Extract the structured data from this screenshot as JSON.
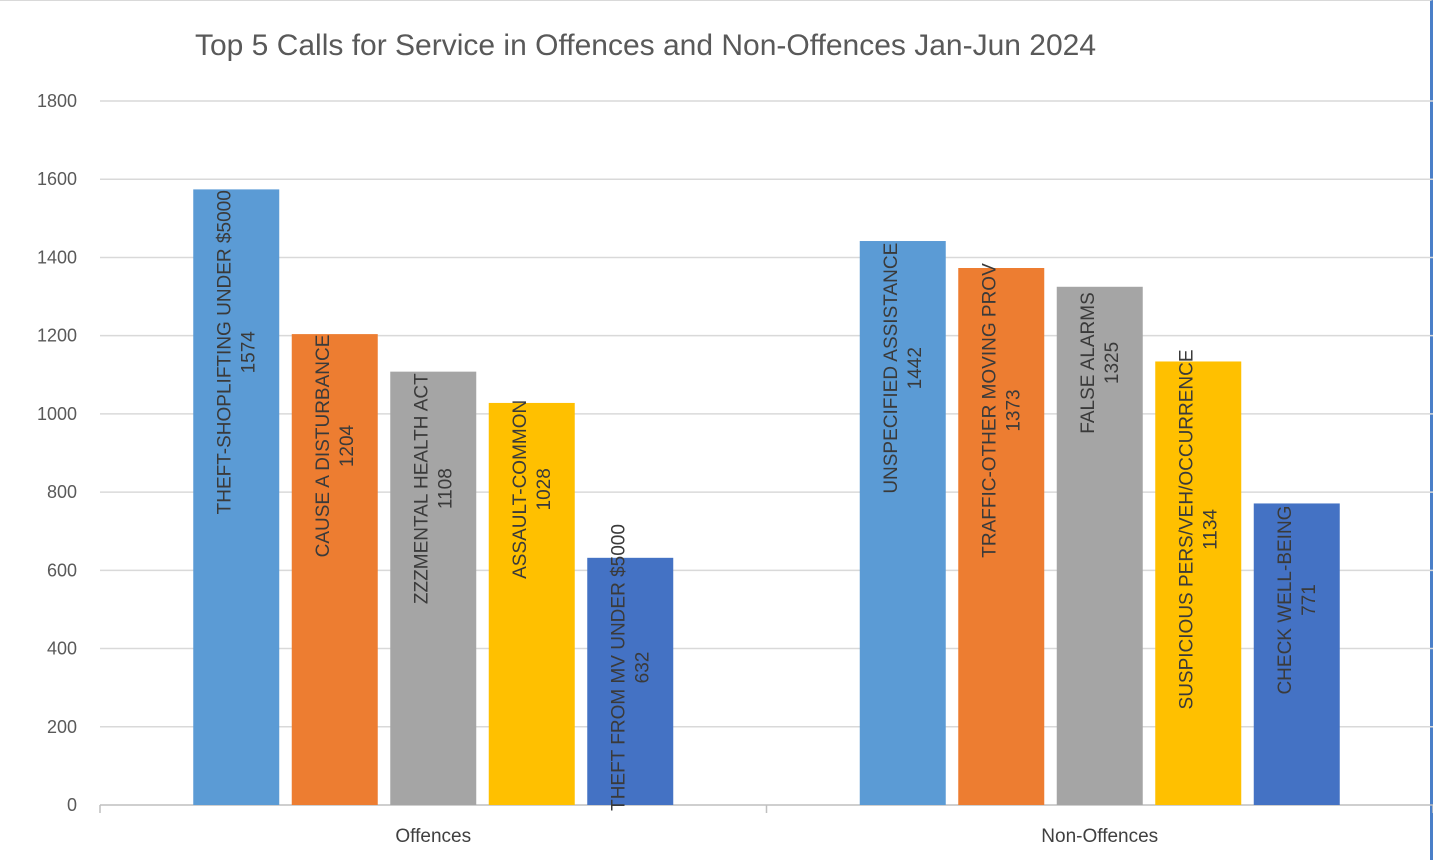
{
  "chart_data": {
    "type": "bar",
    "title": "Top 5 Calls for Service in Offences and Non-Offences Jan-Jun 2024",
    "xlabel": "",
    "ylabel": "",
    "ylim": [
      0,
      1800
    ],
    "yticks": [
      "0",
      "200",
      "400",
      "600",
      "800",
      "1000",
      "1200",
      "1400",
      "1600",
      "1800"
    ],
    "grid": true,
    "legend": "none",
    "groups": [
      {
        "name": "Offences",
        "bars": [
          {
            "label": "THEFT-SHOPLIFTING UNDER $5000",
            "value": 1574,
            "color": "#5b9bd5"
          },
          {
            "label": "CAUSE A DISTURBANCE",
            "value": 1204,
            "color": "#ed7d31"
          },
          {
            "label": "ZZZMENTAL HEALTH ACT",
            "value": 1108,
            "color": "#a5a5a5"
          },
          {
            "label": "ASSAULT-COMMON",
            "value": 1028,
            "color": "#ffc000"
          },
          {
            "label": "THEFT FROM MV UNDER $5000",
            "value": 632,
            "color": "#4472c4"
          }
        ]
      },
      {
        "name": "Non-Offences",
        "bars": [
          {
            "label": "UNSPECIFIED ASSISTANCE",
            "value": 1442,
            "color": "#5b9bd5"
          },
          {
            "label": "TRAFFIC-OTHER MOVING PROV",
            "value": 1373,
            "color": "#ed7d31"
          },
          {
            "label": "FALSE ALARMS",
            "value": 1325,
            "color": "#a5a5a5"
          },
          {
            "label": "SUSPICIOUS PERS/VEH/OCCURRENCE",
            "value": 1134,
            "color": "#ffc000"
          },
          {
            "label": "CHECK WELL-BEING",
            "value": 771,
            "color": "#4472c4"
          }
        ]
      }
    ]
  }
}
